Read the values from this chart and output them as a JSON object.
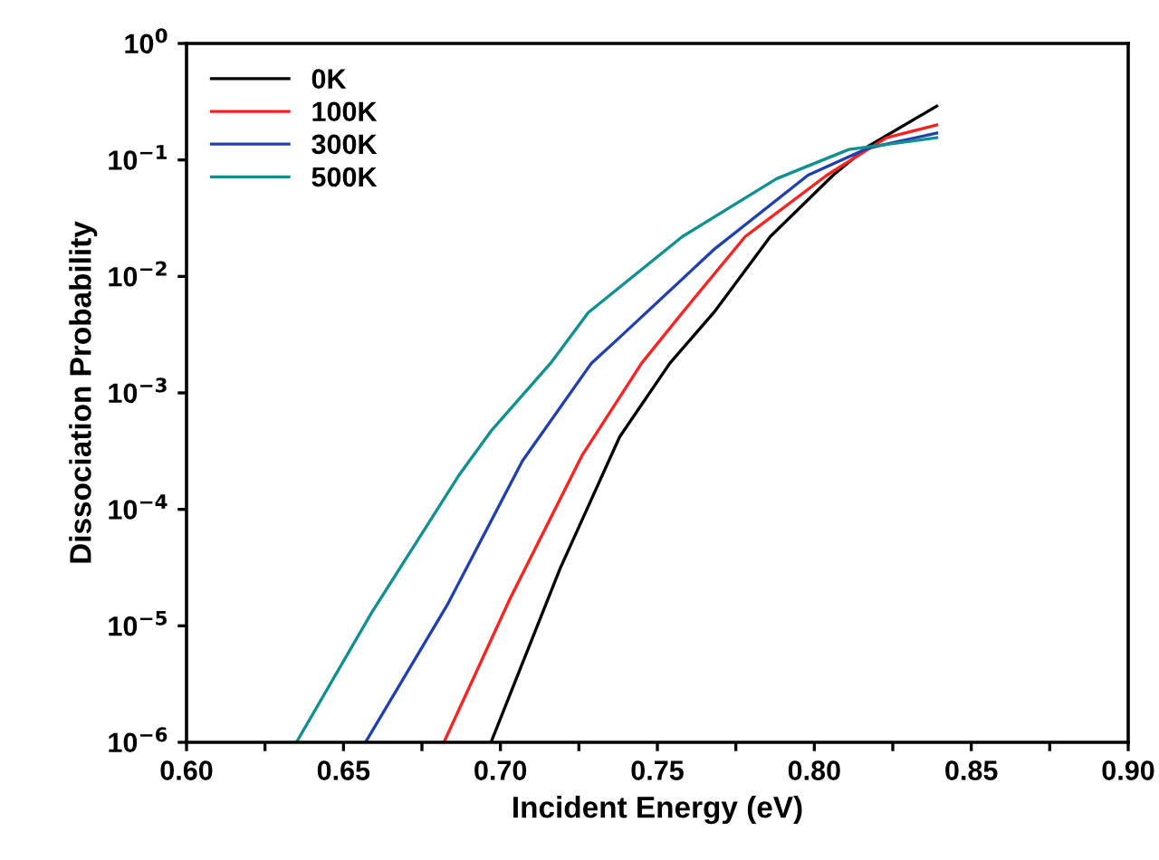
{
  "chart_data": {
    "type": "line",
    "xlabel": "Incident Energy (eV)",
    "ylabel": "Dissociation Probability",
    "log": "y",
    "xlim": [
      0.6,
      0.9
    ],
    "ylim": [
      1e-06,
      1
    ],
    "xticks": [
      {
        "value": 0.6,
        "label": "0.60"
      },
      {
        "value": 0.625,
        "label": null
      },
      {
        "value": 0.65,
        "label": "0.65"
      },
      {
        "value": 0.675,
        "label": null
      },
      {
        "value": 0.7,
        "label": "0.70"
      },
      {
        "value": 0.725,
        "label": null
      },
      {
        "value": 0.75,
        "label": "0.75"
      },
      {
        "value": 0.775,
        "label": null
      },
      {
        "value": 0.8,
        "label": "0.80"
      },
      {
        "value": 0.825,
        "label": null
      },
      {
        "value": 0.85,
        "label": "0.85"
      },
      {
        "value": 0.875,
        "label": null
      },
      {
        "value": 0.9,
        "label": "0.90"
      }
    ],
    "yticks": [
      {
        "value": 1e-06,
        "label": "10$^{−6}$"
      },
      {
        "value": 1e-05,
        "label": "10$^{−5}$"
      },
      {
        "value": 0.0001,
        "label": "10$^{−4}$"
      },
      {
        "value": 0.001,
        "label": "10$^{−3}$"
      },
      {
        "value": 0.01,
        "label": "10$^{−2}$"
      },
      {
        "value": 0.1,
        "label": "10$^{−1}$"
      },
      {
        "value": 1,
        "label": "10$^{0}$"
      }
    ],
    "grid": false,
    "legend": "top left",
    "marker": "none",
    "line_style": "solid",
    "series": [
      {
        "name": "0K",
        "color": "#000000",
        "x": [
          0.697,
          0.719,
          0.738,
          0.754,
          0.768,
          0.786,
          0.806,
          0.817,
          0.839
        ],
        "values": [
          1e-06,
          3.1e-05,
          0.00042,
          0.0018,
          0.0049,
          0.022,
          0.074,
          0.13,
          0.29
        ]
      },
      {
        "name": "100K",
        "color": "#ff2020",
        "x": [
          0.682,
          0.703,
          0.726,
          0.745,
          0.758,
          0.778,
          0.804,
          0.823,
          0.839
        ],
        "values": [
          1e-06,
          1.7e-05,
          0.00029,
          0.0018,
          0.0049,
          0.022,
          0.074,
          0.155,
          0.2
        ]
      },
      {
        "name": "300K",
        "color": "#2040b0",
        "x": [
          0.657,
          0.683,
          0.707,
          0.729,
          0.738,
          0.768,
          0.798,
          0.817,
          0.839
        ],
        "values": [
          1e-06,
          1.5e-05,
          0.00026,
          0.0018,
          0.003,
          0.017,
          0.074,
          0.126,
          0.17
        ]
      },
      {
        "name": "500K",
        "color": "#109090",
        "x": [
          0.635,
          0.659,
          0.687,
          0.697,
          0.716,
          0.728,
          0.758,
          0.788,
          0.811,
          0.839
        ],
        "values": [
          1e-06,
          1.3e-05,
          0.0002,
          0.00047,
          0.0018,
          0.0049,
          0.022,
          0.069,
          0.123,
          0.155
        ]
      }
    ]
  }
}
